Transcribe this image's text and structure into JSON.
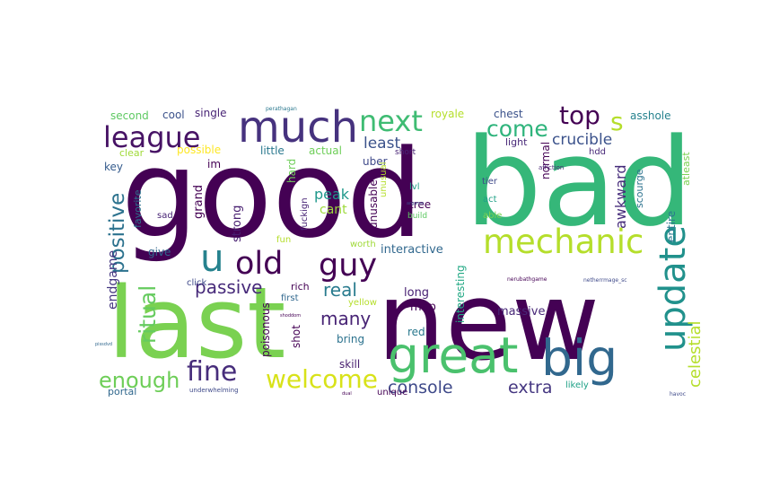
{
  "words": [
    {
      "text": "good",
      "color": "#440154"
    },
    {
      "text": "bad",
      "color": "#35b779"
    },
    {
      "text": "new",
      "color": "#440154"
    },
    {
      "text": "last",
      "color": "#7ad151"
    },
    {
      "text": "much",
      "color": "#46327e"
    },
    {
      "text": "great",
      "color": "#4ac16d"
    },
    {
      "text": "big",
      "color": "#31688e"
    },
    {
      "text": "mechanic",
      "color": "#b5de2b"
    },
    {
      "text": "update",
      "color": "#21918c"
    },
    {
      "text": "old",
      "color": "#440154"
    },
    {
      "text": "guy",
      "color": "#440154"
    },
    {
      "text": "u",
      "color": "#26828e"
    },
    {
      "text": "league",
      "color": "#471365"
    },
    {
      "text": "next",
      "color": "#3fbc73"
    },
    {
      "text": "fine",
      "color": "#472d7b"
    },
    {
      "text": "welcome",
      "color": "#d8e219"
    },
    {
      "text": "come",
      "color": "#2fb47c"
    },
    {
      "text": "top",
      "color": "#440154"
    },
    {
      "text": "s",
      "color": "#b5de2b"
    },
    {
      "text": "enough",
      "color": "#6ece58"
    },
    {
      "text": "console",
      "color": "#3e4989"
    },
    {
      "text": "positive",
      "color": "#2c728e"
    },
    {
      "text": "ritual",
      "color": "#65cb5e"
    },
    {
      "text": "passive",
      "color": "#472a7a"
    },
    {
      "text": "real",
      "color": "#297b8e"
    },
    {
      "text": "many",
      "color": "#482475"
    },
    {
      "text": "crucible",
      "color": "#3b528b"
    },
    {
      "text": "celestial",
      "color": "#b5de2b"
    },
    {
      "text": "least",
      "color": "#3b528b"
    },
    {
      "text": "extra",
      "color": "#453781"
    },
    {
      "text": "awkward",
      "color": "#472d7b"
    },
    {
      "text": "endgame",
      "color": "#453781"
    },
    {
      "text": "peak",
      "color": "#1f988b"
    },
    {
      "text": "cant",
      "color": "#9dd93b"
    },
    {
      "text": "massive",
      "color": "#482878"
    },
    {
      "text": "long",
      "color": "#482173"
    },
    {
      "text": "interactive",
      "color": "#31688e"
    },
    {
      "text": "map",
      "color": "#440154"
    },
    {
      "text": "chest",
      "color": "#3b528b"
    },
    {
      "text": "royale",
      "color": "#b5de2b"
    },
    {
      "text": "asshole",
      "color": "#26828e"
    },
    {
      "text": "second",
      "color": "#5ec962"
    },
    {
      "text": "cool",
      "color": "#3b528b"
    },
    {
      "text": "single",
      "color": "#482475"
    },
    {
      "text": "clear",
      "color": "#a0da39"
    },
    {
      "text": "possible",
      "color": "#fde725"
    },
    {
      "text": "little",
      "color": "#2a788e"
    },
    {
      "text": "actual",
      "color": "#6ece58"
    },
    {
      "text": "light",
      "color": "#482878"
    },
    {
      "text": "key",
      "color": "#365c8d"
    },
    {
      "text": "im",
      "color": "#440154"
    },
    {
      "text": "uber",
      "color": "#3e4989"
    },
    {
      "text": "short",
      "color": "#482475"
    },
    {
      "text": "hard",
      "color": "#6ece58"
    },
    {
      "text": "favorite",
      "color": "#2c728e"
    },
    {
      "text": "grand",
      "color": "#440154"
    },
    {
      "text": "strong",
      "color": "#481f70"
    },
    {
      "text": "sad",
      "color": "#482475"
    },
    {
      "text": "give",
      "color": "#31688e"
    },
    {
      "text": "unusable",
      "color": "#440154"
    },
    {
      "text": "unusual",
      "color": "#b5de2b"
    },
    {
      "text": "lvl",
      "color": "#1fa187"
    },
    {
      "text": "tree",
      "color": "#440154"
    },
    {
      "text": "build",
      "color": "#5ec962"
    },
    {
      "text": "normal",
      "color": "#440154"
    },
    {
      "text": "tier",
      "color": "#3e4989"
    },
    {
      "text": "act",
      "color": "#1fa187"
    },
    {
      "text": "able",
      "color": "#7ad151"
    },
    {
      "text": "entire",
      "color": "#2a788e"
    },
    {
      "text": "scourge",
      "color": "#2c728e"
    },
    {
      "text": "atleast",
      "color": "#7ad151"
    },
    {
      "text": "hdd",
      "color": "#482878"
    },
    {
      "text": "fun",
      "color": "#b5de2b"
    },
    {
      "text": "worth",
      "color": "#a0da39"
    },
    {
      "text": "rich",
      "color": "#440154"
    },
    {
      "text": "first",
      "color": "#31688e"
    },
    {
      "text": "yellow",
      "color": "#b5de2b"
    },
    {
      "text": "click",
      "color": "#3e4989"
    },
    {
      "text": "fuckign",
      "color": "#482475"
    },
    {
      "text": "poisonous",
      "color": "#440154"
    },
    {
      "text": "shot",
      "color": "#440154"
    },
    {
      "text": "bring",
      "color": "#2c728e"
    },
    {
      "text": "skill",
      "color": "#481f70"
    },
    {
      "text": "red",
      "color": "#2a788e"
    },
    {
      "text": "interesting",
      "color": "#22a884"
    },
    {
      "text": "portal",
      "color": "#31688e"
    },
    {
      "text": "unique",
      "color": "#440154"
    },
    {
      "text": "likely",
      "color": "#1fa187"
    },
    {
      "text": "underwhelming",
      "color": "#3e4989"
    },
    {
      "text": "afflction",
      "color": "#482475"
    },
    {
      "text": "perathagan",
      "color": "#2a788e"
    },
    {
      "text": "argame",
      "color": "#3e4989"
    },
    {
      "text": "nerubathgame",
      "color": "#440154"
    },
    {
      "text": "netherrmage_sc",
      "color": "#3e4989"
    },
    {
      "text": "shoddom",
      "color": "#440154"
    },
    {
      "text": "pissdvd",
      "color": "#31688e"
    },
    {
      "text": "dual",
      "color": "#440154"
    },
    {
      "text": "havoc",
      "color": "#3e4989"
    }
  ]
}
